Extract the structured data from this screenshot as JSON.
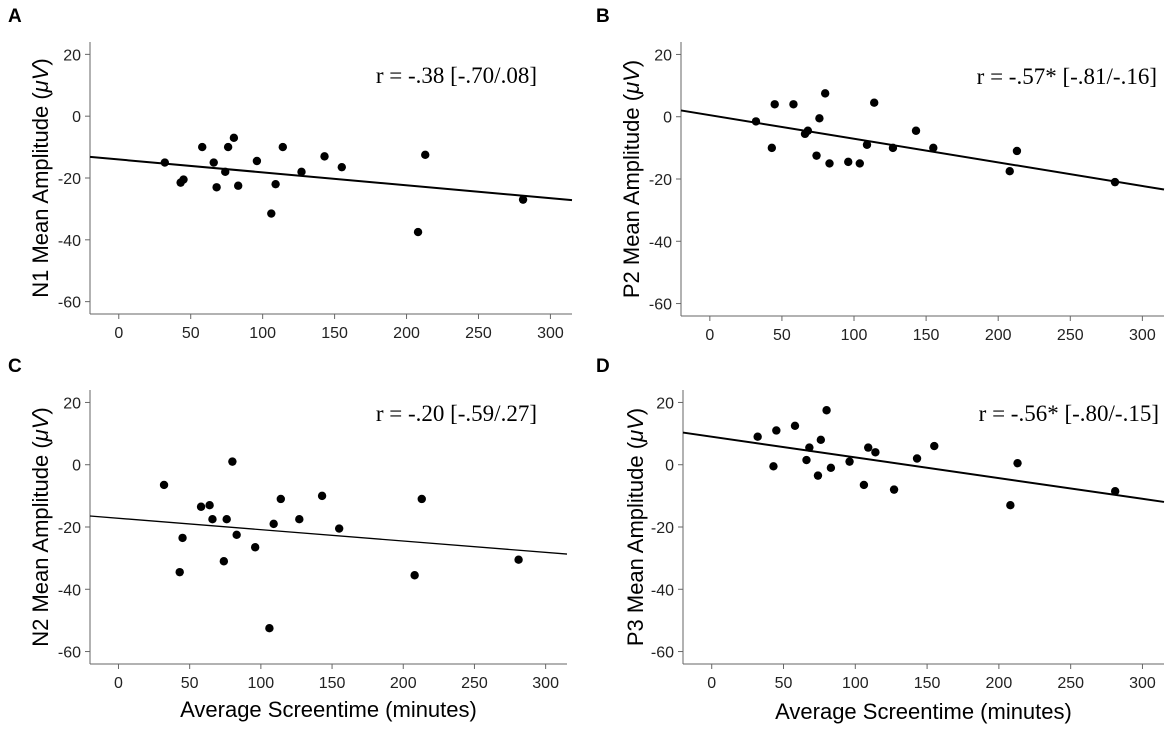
{
  "chart_data": [
    {
      "type": "scatter",
      "panel": "A",
      "ylabel": "N1 Mean Amplitude (μV)",
      "ylabel_main": "N1 Mean Amplitude (",
      "ylabel_unit": "μV",
      "ylabel_close": ")",
      "xlabel": "",
      "xlim": [
        -20,
        315
      ],
      "ylim": [
        -64,
        24
      ],
      "xticks": [
        0,
        50,
        100,
        150,
        200,
        250,
        300
      ],
      "yticks": [
        20,
        0,
        -20,
        -40,
        -60
      ],
      "annotation": "r = -.38 [-.70/.08]",
      "fit": {
        "slope": -0.0418,
        "intercept": -14.0
      },
      "points": [
        [
          32,
          -15
        ],
        [
          43,
          -21.5
        ],
        [
          45,
          -20.5
        ],
        [
          58,
          -10
        ],
        [
          66,
          -15
        ],
        [
          68,
          -23
        ],
        [
          74,
          -18
        ],
        [
          76,
          -10
        ],
        [
          80,
          -7
        ],
        [
          83,
          -22.5
        ],
        [
          96,
          -14.5
        ],
        [
          106,
          -31.5
        ],
        [
          109,
          -22
        ],
        [
          114,
          -10
        ],
        [
          127,
          -18
        ],
        [
          143,
          -13
        ],
        [
          155,
          -16.5
        ],
        [
          208,
          -37.5
        ],
        [
          213,
          -12.5
        ],
        [
          281,
          -27
        ]
      ]
    },
    {
      "type": "scatter",
      "panel": "B",
      "ylabel": "P2 Mean Amplitude (μV)",
      "ylabel_main": "P2 Mean Amplitude (",
      "ylabel_unit": "μV",
      "ylabel_close": ")",
      "xlabel": "",
      "xlim": [
        -20,
        315
      ],
      "ylim": [
        -64,
        24
      ],
      "xticks": [
        0,
        50,
        100,
        150,
        200,
        250,
        300
      ],
      "yticks": [
        20,
        0,
        -20,
        -40,
        -60
      ],
      "annotation": "r = -.57* [-.81/-.16]",
      "fit": {
        "slope": -0.0758,
        "intercept": 0.5
      },
      "points": [
        [
          32,
          -1.5
        ],
        [
          43,
          -10
        ],
        [
          45,
          4
        ],
        [
          58,
          4
        ],
        [
          66,
          -5.5
        ],
        [
          68,
          -4.5
        ],
        [
          74,
          -12.5
        ],
        [
          76,
          -0.5
        ],
        [
          80,
          7.5
        ],
        [
          83,
          -15
        ],
        [
          96,
          -14.5
        ],
        [
          104,
          -15
        ],
        [
          109,
          -9
        ],
        [
          114,
          4.5
        ],
        [
          127,
          -10
        ],
        [
          143,
          -4.5
        ],
        [
          155,
          -10
        ],
        [
          208,
          -17.5
        ],
        [
          213,
          -11
        ],
        [
          281,
          -21
        ]
      ]
    },
    {
      "type": "scatter",
      "panel": "C",
      "ylabel": "N2 Mean Amplitude (μV)",
      "ylabel_main": "N2 Mean Amplitude (",
      "ylabel_unit": "μV",
      "ylabel_close": ")",
      "xlabel": "Average Screentime (minutes)",
      "xlim": [
        -20,
        315
      ],
      "ylim": [
        -64,
        24
      ],
      "xticks": [
        0,
        50,
        100,
        150,
        200,
        250,
        300
      ],
      "yticks": [
        20,
        0,
        -20,
        -40,
        -60
      ],
      "annotation": "r = -.20 [-.59/.27]",
      "fit": {
        "slope": -0.0365,
        "intercept": -17.2
      },
      "points": [
        [
          32,
          -6.5
        ],
        [
          43,
          -34.5
        ],
        [
          45,
          -23.5
        ],
        [
          58,
          -13.5
        ],
        [
          64,
          -13
        ],
        [
          66,
          -17.5
        ],
        [
          74,
          -31
        ],
        [
          76,
          -17.5
        ],
        [
          80,
          1
        ],
        [
          83,
          -22.5
        ],
        [
          96,
          -26.5
        ],
        [
          106,
          -52.5
        ],
        [
          109,
          -19
        ],
        [
          114,
          -11
        ],
        [
          127,
          -17.5
        ],
        [
          143,
          -10
        ],
        [
          155,
          -20.5
        ],
        [
          208,
          -35.5
        ],
        [
          213,
          -11
        ],
        [
          281,
          -30.5
        ]
      ]
    },
    {
      "type": "scatter",
      "panel": "D",
      "ylabel": "P3 Mean Amplitude (μV)",
      "ylabel_main": "P3 Mean Amplitude (",
      "ylabel_unit": "μV",
      "ylabel_close": ")",
      "xlabel": "Average Screentime (minutes)",
      "xlim": [
        -20,
        315
      ],
      "ylim": [
        -64,
        24
      ],
      "xticks": [
        0,
        50,
        100,
        150,
        200,
        250,
        300
      ],
      "yticks": [
        20,
        0,
        -20,
        -40,
        -60
      ],
      "annotation": "r = -.56* [-.80/-.15]",
      "fit": {
        "slope": -0.0665,
        "intercept": 9.0
      },
      "points": [
        [
          32,
          9
        ],
        [
          43,
          -0.5
        ],
        [
          45,
          11
        ],
        [
          58,
          12.5
        ],
        [
          66,
          1.5
        ],
        [
          68,
          5.5
        ],
        [
          74,
          -3.5
        ],
        [
          76,
          8
        ],
        [
          80,
          17.5
        ],
        [
          83,
          -1
        ],
        [
          96,
          1
        ],
        [
          106,
          -6.5
        ],
        [
          109,
          5.5
        ],
        [
          114,
          4
        ],
        [
          127,
          -8
        ],
        [
          143,
          2
        ],
        [
          155,
          6
        ],
        [
          208,
          -13
        ],
        [
          213,
          0.5
        ],
        [
          281,
          -8.5
        ]
      ]
    }
  ]
}
